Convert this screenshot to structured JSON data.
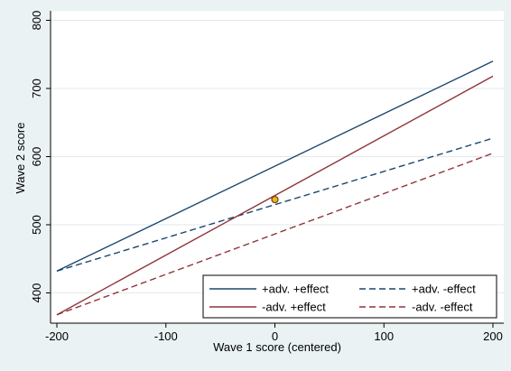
{
  "chart_data": {
    "type": "line",
    "xlabel": "Wave 1 score (centered)",
    "ylabel": "Wave 2 score",
    "xlim": [
      -200,
      200
    ],
    "ylim": [
      370,
      810
    ],
    "xticks": [
      -200,
      -100,
      0,
      100,
      200
    ],
    "yticks": [
      400,
      500,
      600,
      700,
      800
    ],
    "grid": "horizontal",
    "legend_position": "bottom-right",
    "series": [
      {
        "name": "+adv. +effect",
        "color": "#1a476f",
        "dash": "solid",
        "x": [
          -200,
          200
        ],
        "y": [
          432,
          740
        ]
      },
      {
        "name": "+adv. -effect",
        "color": "#1a476f",
        "dash": "dashed",
        "x": [
          -200,
          200
        ],
        "y": [
          432,
          627
        ]
      },
      {
        "name": "-adv. +effect",
        "color": "#90353b",
        "dash": "solid",
        "x": [
          -200,
          200
        ],
        "y": [
          368,
          718
        ]
      },
      {
        "name": "-adv. -effect",
        "color": "#90353b",
        "dash": "dashed",
        "x": [
          -200,
          200
        ],
        "y": [
          368,
          605
        ]
      }
    ],
    "points": [
      {
        "x": 0,
        "y": 537,
        "fill": "#e8b820",
        "stroke": "#7a3b10"
      }
    ]
  }
}
